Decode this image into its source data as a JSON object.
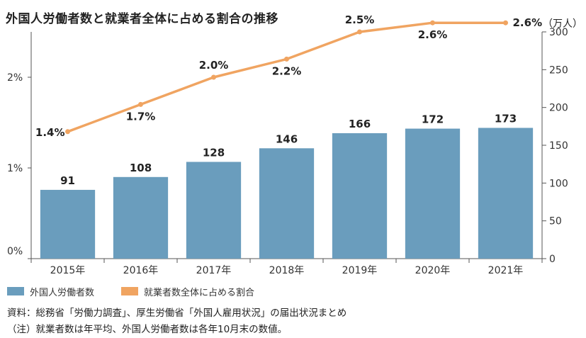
{
  "chart_data": {
    "type": "bar",
    "title": "外国人労働者数と就業者全体に占める割合の推移",
    "categories": [
      "2015年",
      "2016年",
      "2017年",
      "2018年",
      "2019年",
      "2020年",
      "2021年"
    ],
    "series": [
      {
        "name": "外国人労働者数",
        "type": "bar",
        "axis": "right",
        "values": [
          91,
          108,
          128,
          146,
          166,
          172,
          173
        ],
        "labels": [
          "91",
          "108",
          "128",
          "146",
          "166",
          "172",
          "173"
        ],
        "color": "#6a9dbd"
      },
      {
        "name": "就業者数全体に占める割合",
        "type": "line",
        "axis": "left",
        "values": [
          1.4,
          1.7,
          2.0,
          2.2,
          2.5,
          2.6,
          2.6
        ],
        "labels": [
          "1.4%",
          "1.7%",
          "2.0%",
          "2.2%",
          "2.5%",
          "2.6%",
          "2.6%"
        ],
        "color": "#f0a461"
      }
    ],
    "y_left": {
      "ylim": [
        0,
        2.5
      ],
      "ticks": [
        0,
        1,
        2
      ],
      "tick_labels": [
        "0%",
        "1%",
        "2%"
      ]
    },
    "y_right": {
      "ylim": [
        0,
        300
      ],
      "ticks": [
        0,
        50,
        100,
        150,
        200,
        250,
        300
      ],
      "tick_labels": [
        "0",
        "50",
        "100",
        "150",
        "200",
        "250",
        "300"
      ],
      "unit": "（万人）"
    },
    "grid": false,
    "legend_position": "bottom-left"
  },
  "notes": {
    "source": "資料：総務省「労働力調査」、厚生労働省「外国人雇用状況」の届出状況まとめ",
    "footnote": "（注）就業者数は年平均、外国人労働者数は各年10月末の数値。"
  }
}
